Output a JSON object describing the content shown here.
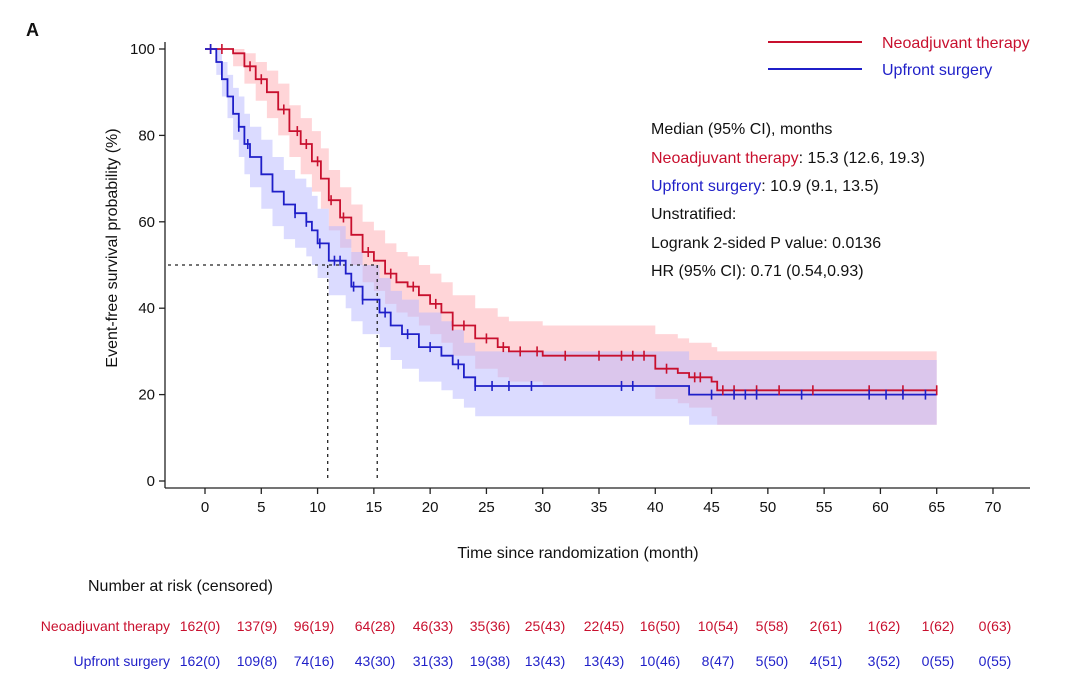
{
  "panel_label": "A",
  "chart_data": {
    "type": "line",
    "subtype": "kaplan-meier",
    "xlabel": "Time since randomization (month)",
    "ylabel": "Event-free survival probability (%)",
    "xlim": [
      0,
      70
    ],
    "ylim": [
      0,
      100
    ],
    "xticks": [
      0,
      5,
      10,
      15,
      20,
      25,
      30,
      35,
      40,
      45,
      50,
      55,
      60,
      65,
      70
    ],
    "yticks": [
      0,
      20,
      40,
      60,
      80,
      100
    ],
    "legend": [
      {
        "label": "Neoadjuvant therapy",
        "color": "#c8102e"
      },
      {
        "label": "Upfront surgery",
        "color": "#1f1fc8"
      }
    ],
    "colors": {
      "neo": "#c8102e",
      "up": "#1f1fc8",
      "neo_band": "#ffb3b8",
      "up_band": "#b8b8ff"
    },
    "annotation": {
      "header": "Median (95% CI), months",
      "neo_name": "Neoadjuvant therapy",
      "neo_value": ": 15.3 (12.6, 19.3)",
      "up_name": "Upfront surgery",
      "up_value": ": 10.9 (9.1, 13.5)",
      "line3": "Unstratified:",
      "line4": "Logrank 2-sided P value: 0.0136",
      "line5": "HR (95% CI): 0.71 (0.54,0.93)"
    },
    "median_line": {
      "y": 50,
      "x_neo": 15.3,
      "x_up": 10.9
    },
    "series": [
      {
        "name": "Neoadjuvant therapy",
        "color": "#c8102e",
        "x": [
          0,
          2.5,
          3.5,
          4.5,
          5.5,
          6.5,
          7.5,
          8.5,
          9.5,
          10.3,
          11,
          12,
          13,
          14,
          15,
          16,
          17,
          18,
          19,
          20,
          21,
          22,
          24,
          26,
          27,
          30,
          40,
          42,
          43,
          45,
          45.5,
          65
        ],
        "y": [
          100,
          99,
          96,
          93,
          90,
          86,
          81,
          78,
          74,
          70,
          65,
          61,
          57,
          53,
          51,
          48,
          46,
          45,
          43,
          41,
          39,
          36,
          33,
          31,
          30,
          29,
          26,
          25,
          24,
          23,
          21,
          21
        ],
        "censor_x": [
          0.5,
          1.5,
          4,
          5,
          7,
          8.2,
          9,
          10,
          11.2,
          12.3,
          14.5,
          16.5,
          18.5,
          20.5,
          22,
          23,
          25,
          26.5,
          28,
          29.5,
          32,
          35,
          37,
          38,
          39,
          41,
          43.5,
          44,
          46,
          47,
          49,
          51,
          54,
          59,
          62,
          65
        ],
        "lower": [
          100,
          96,
          92,
          88,
          84,
          80,
          75,
          71,
          67,
          63,
          58,
          54,
          50,
          46,
          44,
          41,
          39,
          38,
          36,
          34,
          32,
          29,
          26,
          24,
          23,
          22,
          19,
          18,
          17,
          15,
          13,
          13
        ],
        "upper": [
          100,
          100,
          99,
          97,
          95,
          92,
          87,
          84,
          81,
          77,
          72,
          68,
          64,
          60,
          58,
          55,
          53,
          52,
          50,
          48,
          46,
          43,
          40,
          38,
          37,
          36,
          34,
          33,
          32,
          31,
          30,
          30
        ]
      },
      {
        "name": "Upfront surgery",
        "color": "#1f1fc8",
        "x": [
          0,
          1,
          1.5,
          2,
          2.5,
          3,
          3.5,
          4,
          5,
          6,
          7,
          8,
          9,
          9.5,
          10,
          11,
          12.5,
          13,
          14,
          15.5,
          16.5,
          17.5,
          19,
          21,
          22,
          23,
          24,
          25,
          43,
          65
        ],
        "y": [
          100,
          97,
          93,
          89,
          85,
          82,
          78,
          75,
          71,
          67,
          64,
          62,
          60,
          58,
          55,
          51,
          48,
          45,
          42,
          39,
          36,
          34,
          31,
          29,
          27,
          24,
          22,
          22,
          20,
          20
        ],
        "censor_x": [
          0.5,
          3,
          3.8,
          8,
          9,
          10.2,
          11.5,
          12,
          13.2,
          14,
          16,
          18,
          20,
          22.5,
          24,
          25.5,
          27,
          29,
          37,
          38,
          45,
          47,
          48,
          49,
          53,
          59,
          60.5,
          62,
          64
        ],
        "lower": [
          100,
          94,
          89,
          84,
          79,
          75,
          71,
          68,
          63,
          59,
          56,
          54,
          52,
          50,
          47,
          43,
          40,
          37,
          34,
          31,
          28,
          26,
          23,
          21,
          19,
          17,
          15,
          15,
          13,
          13
        ],
        "upper": [
          100,
          100,
          97,
          94,
          91,
          89,
          85,
          82,
          79,
          75,
          72,
          70,
          68,
          66,
          63,
          59,
          56,
          53,
          50,
          47,
          44,
          42,
          39,
          37,
          35,
          32,
          30,
          30,
          28,
          28
        ]
      }
    ],
    "risk_table": {
      "title": "Number at risk (censored)",
      "times": [
        0,
        5,
        10,
        15,
        20,
        25,
        30,
        35,
        40,
        45,
        50,
        55,
        60,
        65,
        70
      ],
      "rows": [
        {
          "label": "Neoadjuvant therapy",
          "color": "#c8102e",
          "values": [
            "162(0)",
            "137(9)",
            "96(19)",
            "64(28)",
            "46(33)",
            "35(36)",
            "25(43)",
            "22(45)",
            "16(50)",
            "10(54)",
            "5(58)",
            "2(61)",
            "1(62)",
            "1(62)",
            "0(63)"
          ]
        },
        {
          "label": "Upfront surgery",
          "color": "#1f1fc8",
          "values": [
            "162(0)",
            "109(8)",
            "74(16)",
            "43(30)",
            "31(33)",
            "19(38)",
            "13(43)",
            "13(43)",
            "10(46)",
            "8(47)",
            "5(50)",
            "4(51)",
            "3(52)",
            "0(55)",
            "0(55)"
          ]
        }
      ]
    }
  }
}
